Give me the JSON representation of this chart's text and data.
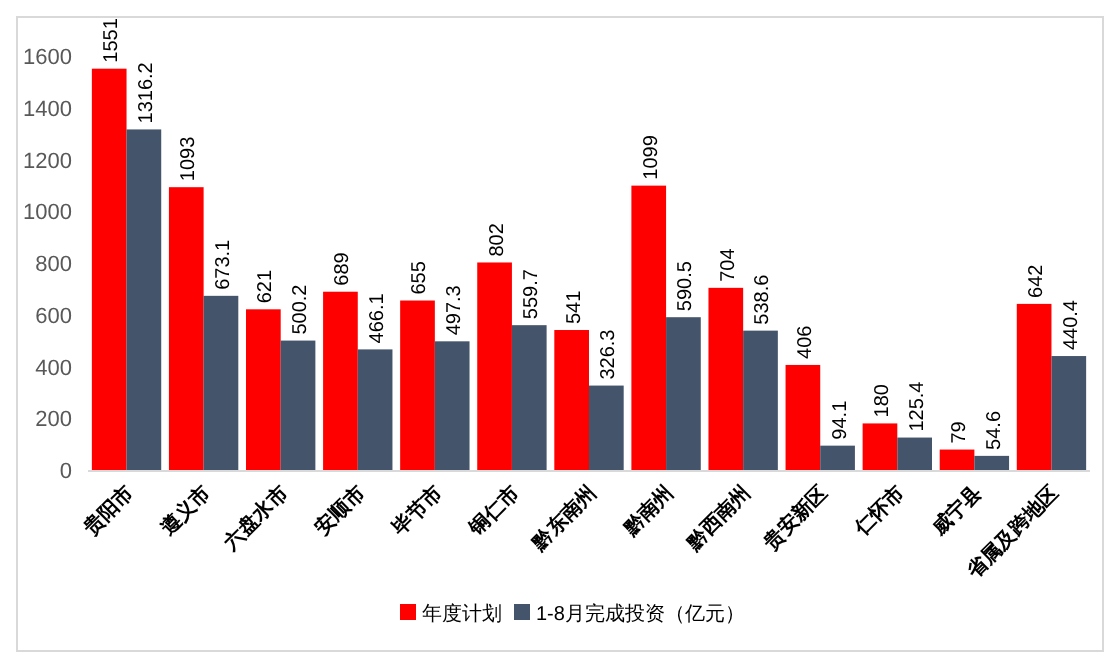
{
  "chart_data": {
    "type": "bar",
    "categories": [
      "贵阳市",
      "遵义市",
      "六盘水市",
      "安顺市",
      "毕节市",
      "铜仁市",
      "黔东南州",
      "黔南州",
      "黔西南州",
      "贵安新区",
      "仁怀市",
      "威宁县",
      "省属及跨地区"
    ],
    "series": [
      {
        "name": "年度计划",
        "color": "#ff0000",
        "values": [
          1551,
          1093,
          621,
          689,
          655,
          802,
          541,
          1099,
          704,
          406,
          180,
          79,
          642
        ]
      },
      {
        "name": "1-8月完成投资（亿元）",
        "color": "#44546a",
        "values": [
          1316.2,
          673.1,
          500.2,
          466.1,
          497.3,
          559.7,
          326.3,
          590.5,
          538.6,
          94.1,
          125.4,
          54.6,
          440.4
        ]
      }
    ],
    "ylim": [
      0,
      1600
    ],
    "yticks": [
      0,
      200,
      400,
      600,
      800,
      1000,
      1200,
      1400,
      1600
    ],
    "data_labels": true,
    "legend": "bottom"
  }
}
